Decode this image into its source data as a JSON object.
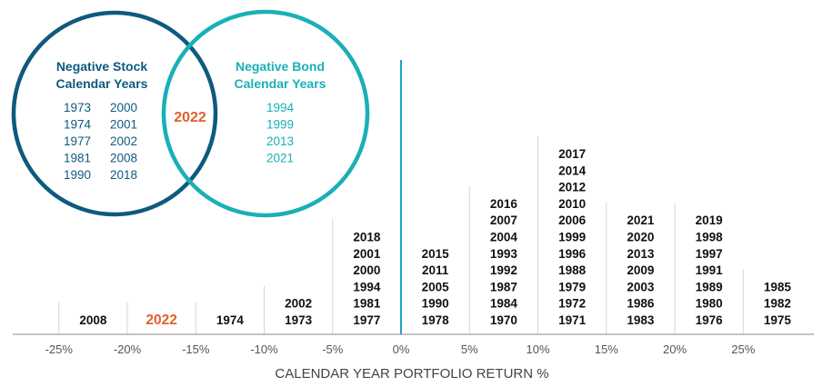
{
  "colors": {
    "stock": "#0e5a7e",
    "bond": "#19b0b6",
    "highlight": "#e0602c",
    "text": "#111111",
    "axis_text": "#555555",
    "divider": "#d6d6d6",
    "zero_line": "#1aa3c4"
  },
  "venn": {
    "stock_title": [
      "Negative Stock",
      "Calendar Years"
    ],
    "stock_years_left": [
      "1973",
      "1974",
      "1977",
      "1981",
      "1990"
    ],
    "stock_years_right": [
      "2000",
      "2001",
      "2002",
      "2008",
      "2018"
    ],
    "bond_title": [
      "Negative Bond",
      "Calendar Years"
    ],
    "bond_years": [
      "1994",
      "1999",
      "2013",
      "2021"
    ],
    "overlap_year": "2022"
  },
  "chart_data": {
    "type": "histogram",
    "xlabel": "CALENDAR YEAR PORTFOLIO RETURN %",
    "xlim": [
      -30,
      30
    ],
    "tick_values": [
      -25,
      -20,
      -15,
      -10,
      -5,
      0,
      5,
      10,
      15,
      20,
      25
    ],
    "tick_labels": [
      "-25%",
      "-20%",
      "-15%",
      "-10%",
      "-5%",
      "0%",
      "5%",
      "10%",
      "15%",
      "20%",
      "25%"
    ],
    "bins": [
      {
        "range": [
          -30,
          -25
        ],
        "years": []
      },
      {
        "range": [
          -25,
          -20
        ],
        "years": [
          "2008"
        ]
      },
      {
        "range": [
          -20,
          -15
        ],
        "years": [
          "2022"
        ],
        "highlight": "2022"
      },
      {
        "range": [
          -15,
          -10
        ],
        "years": [
          "1974"
        ]
      },
      {
        "range": [
          -10,
          -5
        ],
        "years": [
          "2002",
          "1973"
        ]
      },
      {
        "range": [
          -5,
          0
        ],
        "years": [
          "2018",
          "2001",
          "2000",
          "1994",
          "1981",
          "1977"
        ]
      },
      {
        "range": [
          0,
          5
        ],
        "years": [
          "2015",
          "2011",
          "2005",
          "1990",
          "1978"
        ]
      },
      {
        "range": [
          5,
          10
        ],
        "years": [
          "2016",
          "2007",
          "2004",
          "1993",
          "1992",
          "1987",
          "1984",
          "1970"
        ]
      },
      {
        "range": [
          10,
          15
        ],
        "years": [
          "2017",
          "2014",
          "2012",
          "2010",
          "2006",
          "1999",
          "1996",
          "1988",
          "1979",
          "1972",
          "1971"
        ]
      },
      {
        "range": [
          15,
          20
        ],
        "years": [
          "2021",
          "2020",
          "2013",
          "2009",
          "2003",
          "1986",
          "1983"
        ]
      },
      {
        "range": [
          20,
          25
        ],
        "years": [
          "2019",
          "1998",
          "1997",
          "1991",
          "1989",
          "1980",
          "1976"
        ]
      },
      {
        "range": [
          25,
          30
        ],
        "years": [
          "1985",
          "1982",
          "1975"
        ]
      }
    ]
  }
}
